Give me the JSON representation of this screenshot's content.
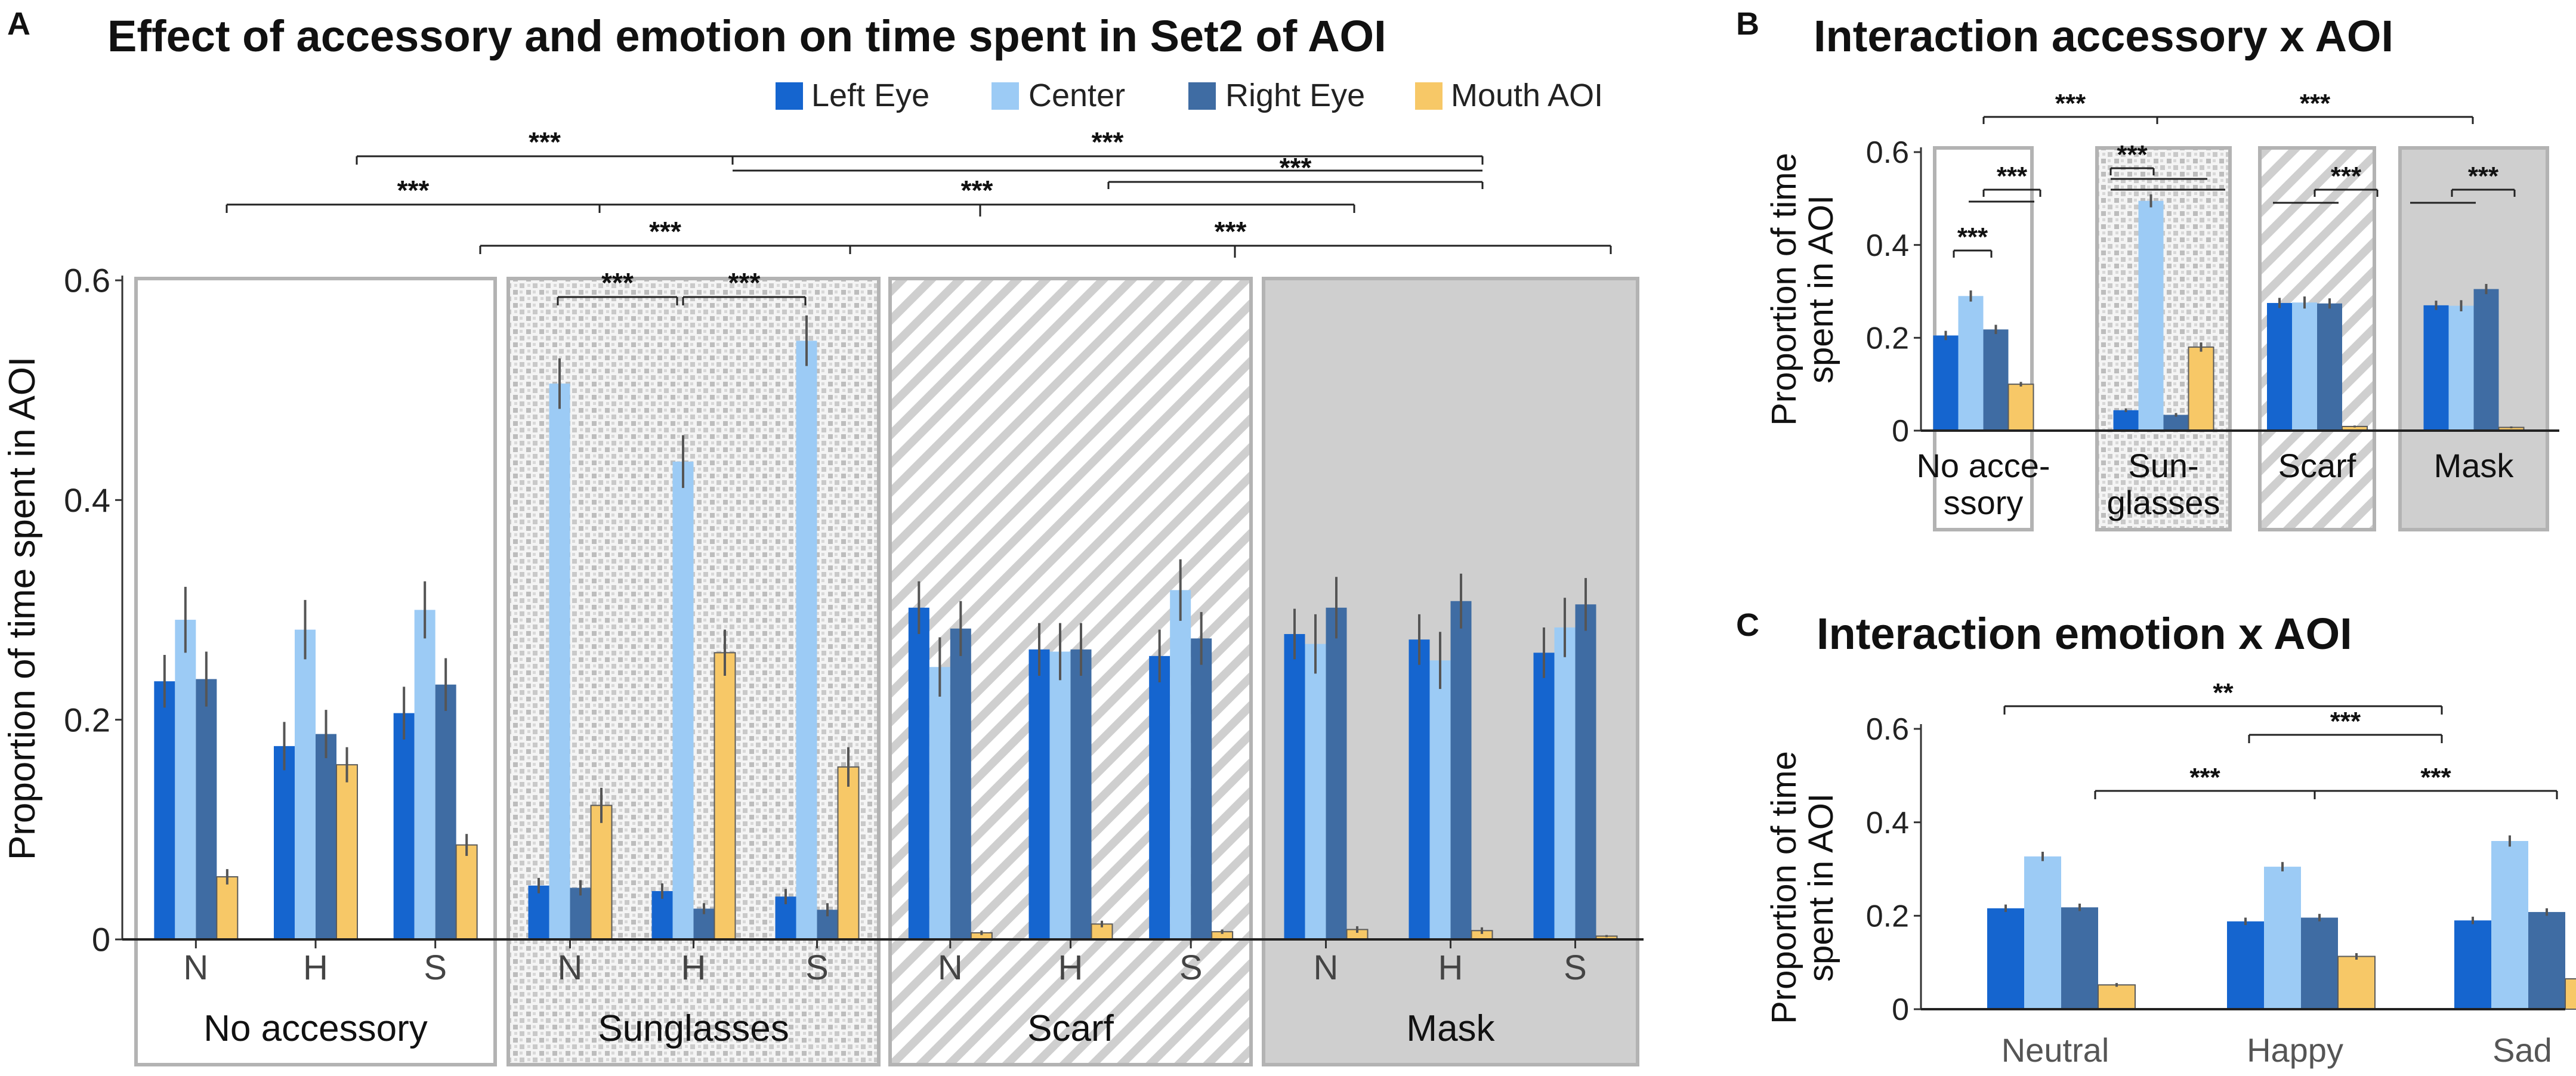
{
  "colors": {
    "left_eye": "#1565cf",
    "center": "#9ccbf5",
    "right_eye": "#3f6ca3",
    "mouth": "#f7c867",
    "panel_border": "#b3b3b3",
    "mask_fill": "#cfcfcf",
    "error_bar": "#555555",
    "bracket": "#222222"
  },
  "legend": {
    "items": [
      {
        "label": "Left Eye",
        "color_key": "left_eye"
      },
      {
        "label": "Center",
        "color_key": "center"
      },
      {
        "label": "Right Eye",
        "color_key": "right_eye"
      },
      {
        "label": "Mouth AOI",
        "color_key": "mouth"
      }
    ]
  },
  "chart_data": [
    {
      "panel": "A",
      "type": "bar",
      "title": "Effect of accessory and emotion on time spent in Set2 of AOI",
      "ylabel": "Proportion of time spent in AOI",
      "ylim": [
        0,
        0.6
      ],
      "yticks": [
        "0",
        "0.2",
        "0.4",
        "0.6"
      ],
      "series_names": [
        "Left Eye",
        "Center",
        "Right Eye",
        "Mouth AOI"
      ],
      "groups": [
        {
          "label": "No accessory",
          "pattern": "none",
          "subgroups": [
            {
              "label": "N",
              "values": [
                0.235,
                0.291,
                0.237,
                0.057
              ],
              "errors": [
                0.024,
                0.03,
                0.025,
                0.007
              ]
            },
            {
              "label": "H",
              "values": [
                0.176,
                0.282,
                0.187,
                0.159
              ],
              "errors": [
                0.022,
                0.027,
                0.022,
                0.016
              ]
            },
            {
              "label": "S",
              "values": [
                0.206,
                0.3,
                0.232,
                0.086
              ],
              "errors": [
                0.024,
                0.026,
                0.024,
                0.01
              ]
            }
          ]
        },
        {
          "label": "Sunglasses",
          "pattern": "dots",
          "subgroups": [
            {
              "label": "N",
              "values": [
                0.049,
                0.506,
                0.047,
                0.122
              ],
              "errors": [
                0.007,
                0.023,
                0.007,
                0.016
              ]
            },
            {
              "label": "H",
              "values": [
                0.044,
                0.435,
                0.028,
                0.261
              ],
              "errors": [
                0.007,
                0.024,
                0.005,
                0.021
              ]
            },
            {
              "label": "S",
              "values": [
                0.039,
                0.545,
                0.027,
                0.157
              ],
              "errors": [
                0.007,
                0.023,
                0.006,
                0.018
              ]
            }
          ]
        },
        {
          "label": "Scarf",
          "pattern": "stripes",
          "subgroups": [
            {
              "label": "N",
              "values": [
                0.302,
                0.248,
                0.283,
                0.006
              ],
              "errors": [
                0.024,
                0.027,
                0.025,
                0.002
              ]
            },
            {
              "label": "H",
              "values": [
                0.264,
                0.262,
                0.264,
                0.014
              ],
              "errors": [
                0.024,
                0.026,
                0.024,
                0.003
              ]
            },
            {
              "label": "S",
              "values": [
                0.258,
                0.318,
                0.274,
                0.007
              ],
              "errors": [
                0.024,
                0.028,
                0.024,
                0.002
              ]
            }
          ]
        },
        {
          "label": "Mask",
          "pattern": "gray",
          "subgroups": [
            {
              "label": "N",
              "values": [
                0.278,
                0.269,
                0.302,
                0.009
              ],
              "errors": [
                0.023,
                0.027,
                0.028,
                0.003
              ]
            },
            {
              "label": "H",
              "values": [
                0.273,
                0.254,
                0.308,
                0.008
              ],
              "errors": [
                0.023,
                0.026,
                0.025,
                0.003
              ]
            },
            {
              "label": "S",
              "values": [
                0.261,
                0.284,
                0.305,
                0.003
              ],
              "errors": [
                0.023,
                0.027,
                0.024,
                0.001
              ]
            }
          ]
        }
      ],
      "annotations": [
        "***",
        "***",
        "***",
        "***",
        "***",
        "***",
        "***",
        "***",
        "***"
      ]
    },
    {
      "panel": "B",
      "type": "bar",
      "title": "Interaction accessory x AOI",
      "ylabel_lines": [
        "Proportion of time",
        "spent in AOI"
      ],
      "ylim": [
        0,
        0.6
      ],
      "yticks": [
        "0",
        "0.2",
        "0.4",
        "0.6"
      ],
      "series_names": [
        "Left Eye",
        "Center",
        "Right Eye",
        "Mouth AOI"
      ],
      "groups": [
        {
          "label_lines": [
            "No acce-",
            "ssory"
          ],
          "pattern": "none",
          "values": [
            0.205,
            0.29,
            0.218,
            0.1
          ],
          "errors": [
            0.01,
            0.012,
            0.01,
            0.005
          ]
        },
        {
          "label_lines": [
            "Sun-",
            "glasses"
          ],
          "pattern": "dots",
          "values": [
            0.044,
            0.495,
            0.034,
            0.18
          ],
          "errors": [
            0.004,
            0.014,
            0.004,
            0.01
          ]
        },
        {
          "label_lines": [
            "Scarf"
          ],
          "pattern": "stripes",
          "values": [
            0.275,
            0.276,
            0.274,
            0.009
          ],
          "errors": [
            0.011,
            0.013,
            0.011,
            0.002
          ]
        },
        {
          "label_lines": [
            "Mask"
          ],
          "pattern": "gray",
          "values": [
            0.27,
            0.269,
            0.305,
            0.007
          ],
          "errors": [
            0.01,
            0.012,
            0.011,
            0.002
          ]
        }
      ],
      "annotations": [
        "***",
        "***",
        "***",
        "***",
        "***",
        "***",
        "***"
      ]
    },
    {
      "panel": "C",
      "type": "bar",
      "title": "Interaction emotion x AOI",
      "ylabel_lines": [
        "Proportion of time",
        "spent in AOI"
      ],
      "ylim": [
        0,
        0.6
      ],
      "yticks": [
        "0",
        "0.2",
        "0.4",
        "0.6"
      ],
      "series_names": [
        "Left Eye",
        "Center",
        "Right Eye",
        "Mouth AOI"
      ],
      "groups": [
        {
          "label": "Neutral",
          "values": [
            0.216,
            0.327,
            0.218,
            0.052
          ],
          "errors": [
            0.008,
            0.01,
            0.008,
            0.004
          ]
        },
        {
          "label": "Happy",
          "values": [
            0.188,
            0.305,
            0.196,
            0.113
          ],
          "errors": [
            0.008,
            0.01,
            0.008,
            0.007
          ]
        },
        {
          "label": "Sad",
          "values": [
            0.19,
            0.36,
            0.208,
            0.065
          ],
          "errors": [
            0.008,
            0.012,
            0.008,
            0.005
          ]
        }
      ],
      "annotations": [
        "**",
        "***",
        "***",
        "***"
      ]
    }
  ],
  "panel_labels": [
    "A",
    "B",
    "C"
  ]
}
